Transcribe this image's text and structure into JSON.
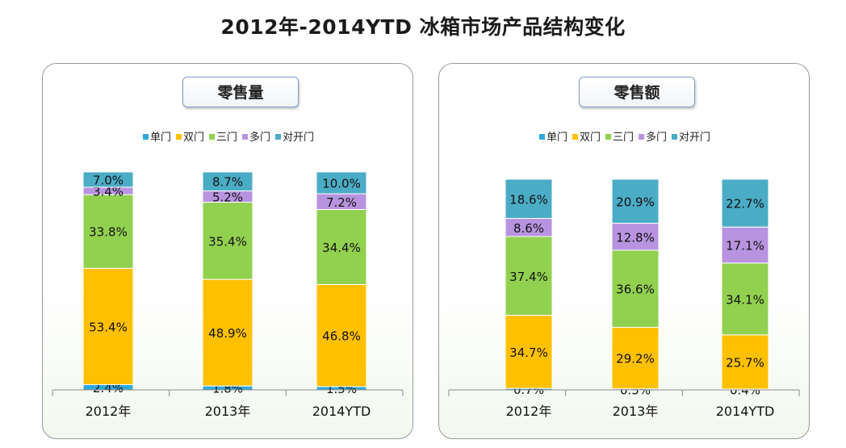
{
  "title": "2012年-2014YTD 冰箱市场产品结构变化",
  "colors": {
    "单门": "#2fa8dc",
    "双门": "#ffc000",
    "三门": "#92d050",
    "多门": "#b894e0",
    "对开门": "#4bacc6"
  },
  "panels": [
    {
      "title": "零售量"
    },
    {
      "title": "零售额"
    }
  ],
  "chart_data": [
    {
      "type": "bar",
      "stacked": true,
      "title": "零售量",
      "legend_position": "top",
      "categories": [
        "2012年",
        "2013年",
        "2014YTD"
      ],
      "series": [
        {
          "name": "单门",
          "values": [
            2.4,
            1.8,
            1.5
          ],
          "labels": [
            "2.4%",
            "1.8%",
            "1.5%"
          ]
        },
        {
          "name": "双门",
          "values": [
            53.4,
            48.9,
            46.8
          ],
          "labels": [
            "53.4%",
            "48.9%",
            "46.8%"
          ]
        },
        {
          "name": "三门",
          "values": [
            33.8,
            35.4,
            34.4
          ],
          "labels": [
            "33.8%",
            "35.4%",
            "34.4%"
          ]
        },
        {
          "name": "多门",
          "values": [
            3.4,
            5.2,
            7.2
          ],
          "labels": [
            "3.4%",
            "5.2%",
            "7.2%"
          ]
        },
        {
          "name": "对开门",
          "values": [
            7.0,
            8.7,
            10.0
          ],
          "labels": [
            "7.0%",
            "8.7%",
            "10.0%"
          ]
        }
      ]
    },
    {
      "type": "bar",
      "stacked": true,
      "title": "零售额",
      "legend_position": "top",
      "categories": [
        "2012年",
        "2013年",
        "2014YTD"
      ],
      "series": [
        {
          "name": "单门",
          "values": [
            0.7,
            0.5,
            0.4
          ],
          "labels": [
            "0.7%",
            "0.5%",
            "0.4%"
          ]
        },
        {
          "name": "双门",
          "values": [
            34.7,
            29.2,
            25.7
          ],
          "labels": [
            "34.7%",
            "29.2%",
            "25.7%"
          ]
        },
        {
          "name": "三门",
          "values": [
            37.4,
            36.6,
            34.1
          ],
          "labels": [
            "37.4%",
            "36.6%",
            "34.1%"
          ]
        },
        {
          "name": "多门",
          "values": [
            8.6,
            12.8,
            17.1
          ],
          "labels": [
            "8.6%",
            "12.8%",
            "17.1%"
          ]
        },
        {
          "name": "对开门",
          "values": [
            18.6,
            20.9,
            22.7
          ],
          "labels": [
            "18.6%",
            "20.9%",
            "22.7%"
          ]
        }
      ]
    }
  ]
}
